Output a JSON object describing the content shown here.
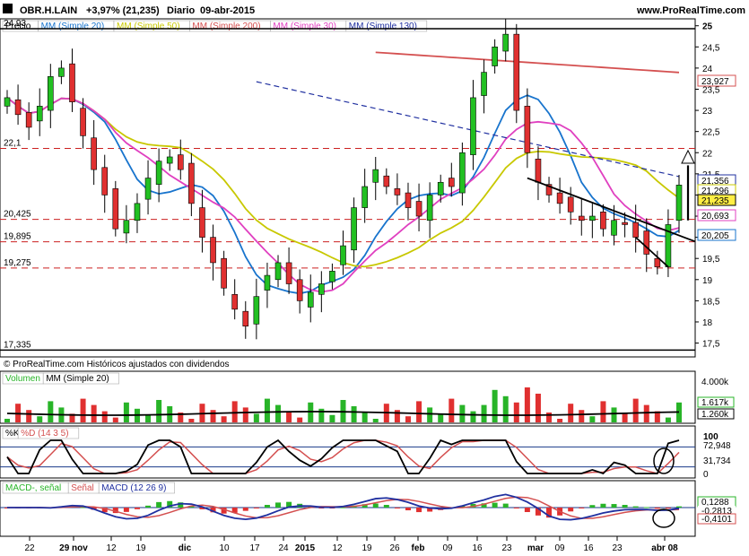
{
  "header": {
    "ticker": "OBR.H.LAIN",
    "change": "+3,97% (21,235)",
    "period": "Diario",
    "date": "09-abr-2015",
    "site": "www.ProRealTime.com"
  },
  "price_panel": {
    "legend": [
      {
        "label": "Precio",
        "color": "#000000"
      },
      {
        "label": "MM (Simple 20)",
        "color": "#1874cd"
      },
      {
        "label": "MM (Simple 50)",
        "color": "#c8c800"
      },
      {
        "label": "MM (Simple 200)",
        "color": "#d45050"
      },
      {
        "label": "MM (Simple 30)",
        "color": "#e040c0"
      },
      {
        "label": "MM (Simple 130)",
        "color": "#2030a0"
      }
    ],
    "footer_text": "© ProRealTime.com  Históricos ajustados con dividendos",
    "left_levels": [
      "24,93",
      "22,1",
      "20,425",
      "19,895",
      "19,275",
      "17,335"
    ],
    "right_ticks": [
      "25",
      "24,5",
      "24",
      "23,5",
      "23",
      "22,5",
      "22",
      "21,5",
      "21",
      "20,5",
      "20",
      "19,5",
      "19",
      "18,5",
      "18",
      "17,5"
    ],
    "right_badges": [
      {
        "text": "23,927",
        "color": "#d45050"
      },
      {
        "text": "21,356",
        "color": "#2030a0"
      },
      {
        "text": "21,296",
        "color": "#c8c800"
      },
      {
        "text": "21,235",
        "color": "#000000"
      },
      {
        "text": "20,693",
        "color": "#e040c0"
      },
      {
        "text": "20,205",
        "color": "#1874cd"
      }
    ]
  },
  "volume_panel": {
    "legend": [
      {
        "label": "Volumen",
        "color": "#28b428"
      },
      {
        "label": "MM (Simple 20)",
        "color": "#000000"
      }
    ],
    "right_labels": [
      "4.000k",
      "1.617k",
      "1.260k"
    ]
  },
  "stoch_panel": {
    "legend": [
      {
        "label": "%K",
        "color": "#000000"
      },
      {
        "label": "%D (14 3 5)",
        "color": "#d45050"
      }
    ],
    "right_labels": [
      "100",
      "72,948",
      "31,734",
      "0"
    ]
  },
  "macd_panel": {
    "legend": [
      {
        "label": "MACD-, señal",
        "color": "#28b428"
      },
      {
        "label": "Señal",
        "color": "#d45050"
      },
      {
        "label": "MACD (12 26 9)",
        "color": "#2030a0"
      }
    ],
    "right_labels": [
      "0,1288",
      "-0,2813",
      "-0,4101"
    ]
  },
  "chart_data": {
    "type": "candlestick",
    "x_axis_labels": [
      "22",
      "29 nov",
      "12",
      "19",
      "dic",
      "10",
      "17",
      "24",
      "2015",
      "12",
      "19",
      "26",
      "feb",
      "09",
      "16",
      "23",
      "mar",
      "09",
      "16",
      "23",
      "abr 08"
    ],
    "ylim": [
      17.3,
      25.1
    ],
    "horizontal_levels": [
      24.93,
      22.1,
      20.425,
      19.895,
      19.275,
      17.335
    ],
    "last_close": 21.235,
    "last_change_pct": 3.97,
    "close_series": [
      23.3,
      22.9,
      22.6,
      23.1,
      23.8,
      24.0,
      23.2,
      22.4,
      21.6,
      21.0,
      20.2,
      20.4,
      20.8,
      21.4,
      21.8,
      21.9,
      21.6,
      20.8,
      20.0,
      19.4,
      18.8,
      18.3,
      17.9,
      18.6,
      19.1,
      19.4,
      18.9,
      18.5,
      18.7,
      18.9,
      19.2,
      19.8,
      20.7,
      21.2,
      21.6,
      21.2,
      21.0,
      20.7,
      20.5,
      21.0,
      21.3,
      21.2,
      22.0,
      23.3,
      23.9,
      24.5,
      24.8,
      23.0,
      22.0,
      21.3,
      21.0,
      20.8,
      20.6,
      20.4,
      20.5,
      20.2,
      20.4,
      20.3,
      20.0,
      19.6,
      19.3,
      20.3,
      21.235
    ],
    "series": [
      {
        "name": "MM (Simple 20)",
        "current": 20.205
      },
      {
        "name": "MM (Simple 50)",
        "current": 21.296
      },
      {
        "name": "MM (Simple 200)",
        "current": 23.927
      },
      {
        "name": "MM (Simple 30)",
        "current": 20.693
      },
      {
        "name": "MM (Simple 130)",
        "current": 21.356
      }
    ],
    "volume": {
      "ylim_label": "4.000k",
      "last": "1.617k",
      "mm20": "1.260k"
    },
    "stochastic": {
      "k": 72.948,
      "d": 31.734,
      "ylim": [
        0,
        100
      ]
    },
    "macd": {
      "histogram": 0.1288,
      "macd": -0.2813,
      "signal": -0.4101
    }
  }
}
